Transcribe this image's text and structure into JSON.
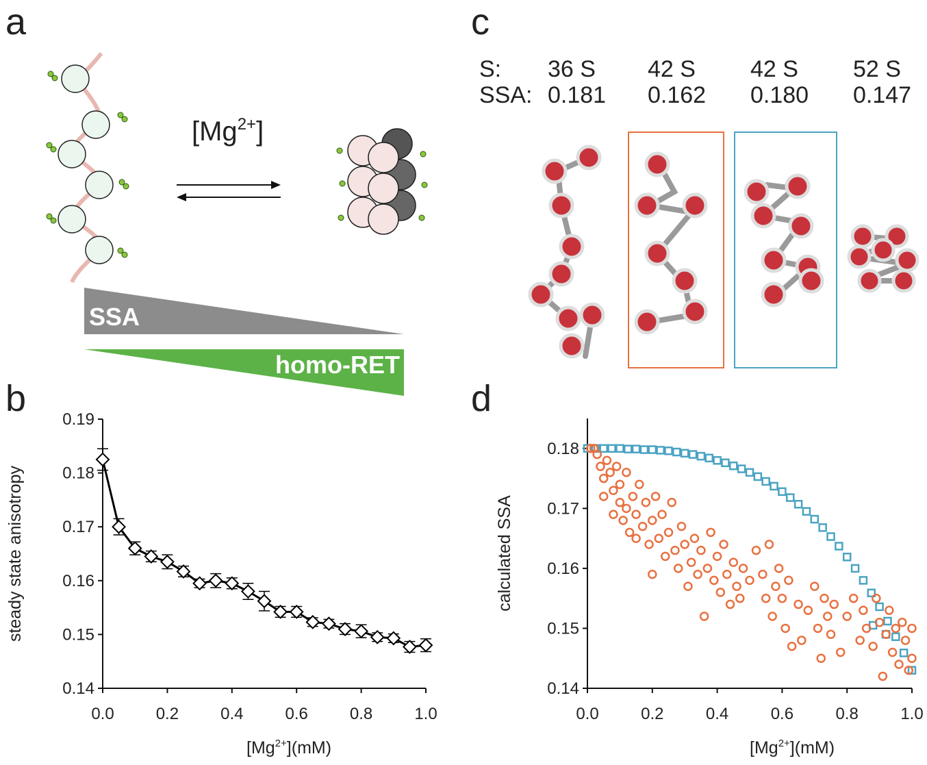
{
  "panel_labels": [
    "a",
    "b",
    "c",
    "d"
  ],
  "panel_a": {
    "reagent": [
      "[Mg",
      "2+",
      "]"
    ],
    "bar_top": "SSA",
    "bar_bottom": "homo-RET"
  },
  "panel_c": {
    "row_labels": [
      "S:",
      "SSA:"
    ],
    "columns": [
      {
        "s": "36 S",
        "ssa": "0.181"
      },
      {
        "s": "42 S",
        "ssa": "0.162"
      },
      {
        "s": "42 S",
        "ssa": "0.180"
      },
      {
        "s": "52 S",
        "ssa": "0.147"
      }
    ]
  },
  "chart_data": [
    {
      "type": "line",
      "ylabel": "steady state anisotropy",
      "xlabel": [
        "[Mg",
        "2+",
        "](mM)"
      ],
      "x": [
        0,
        0.05,
        0.1,
        0.15,
        0.2,
        0.25,
        0.3,
        0.35,
        0.4,
        0.45,
        0.5,
        0.55,
        0.6,
        0.65,
        0.7,
        0.75,
        0.8,
        0.85,
        0.9,
        0.95,
        1.0
      ],
      "series": [
        {
          "color": "#000000",
          "marker": "diamond",
          "values": [
            0.1825,
            0.17,
            0.166,
            0.1645,
            0.1635,
            0.1617,
            0.1595,
            0.16,
            0.1595,
            0.158,
            0.1562,
            0.1542,
            0.1542,
            0.1523,
            0.152,
            0.151,
            0.1506,
            0.1495,
            0.1493,
            0.1477,
            0.148
          ],
          "errors": [
            0.002,
            0.0015,
            0.0012,
            0.001,
            0.0013,
            0.001,
            0.0008,
            0.0013,
            0.001,
            0.0015,
            0.0018,
            0.001,
            0.001,
            0.0008,
            0.0008,
            0.001,
            0.0012,
            0.0008,
            0.0008,
            0.001,
            0.0012
          ]
        }
      ],
      "xlim": [
        0,
        1.0
      ],
      "ylim": [
        0.14,
        0.19
      ],
      "xticks": [
        {
          "value": 0,
          "label": "0.0"
        },
        0.2,
        0.4,
        0.6,
        0.8,
        {
          "value": 1,
          "label": "1.0"
        }
      ],
      "yticks": [
        0.14,
        0.15,
        0.16,
        0.17,
        0.18,
        0.19
      ]
    },
    {
      "type": "scatter",
      "ylabel": "calculated SSA",
      "xlabel": [
        "[Mg",
        "2+",
        "](mM)"
      ],
      "series": [
        {
          "color": "#4aa3c2",
          "marker": "square",
          "x": [
            0,
            0.025,
            0.05,
            0.075,
            0.1,
            0.125,
            0.15,
            0.175,
            0.2,
            0.225,
            0.25,
            0.275,
            0.3,
            0.325,
            0.35,
            0.375,
            0.4,
            0.425,
            0.45,
            0.475,
            0.5,
            0.525,
            0.55,
            0.575,
            0.6,
            0.625,
            0.65,
            0.675,
            0.7,
            0.725,
            0.75,
            0.775,
            0.8,
            0.825,
            0.85,
            0.875,
            0.9,
            0.925,
            0.95,
            0.975,
            1.0,
            0.88,
            0.92
          ],
          "values": [
            0.18,
            0.18,
            0.18,
            0.18,
            0.18,
            0.1799,
            0.1799,
            0.1798,
            0.1798,
            0.1797,
            0.1796,
            0.1794,
            0.1792,
            0.179,
            0.1787,
            0.1784,
            0.178,
            0.1776,
            0.1771,
            0.1766,
            0.176,
            0.1753,
            0.1745,
            0.1737,
            0.1728,
            0.1718,
            0.1707,
            0.1695,
            0.1682,
            0.1668,
            0.1653,
            0.1637,
            0.1619,
            0.16,
            0.158,
            0.1559,
            0.1536,
            0.1512,
            0.1486,
            0.1459,
            0.143,
            0.1505,
            0.149
          ]
        },
        {
          "color": "#e8703f",
          "marker": "circle",
          "x": [
            0.01,
            0.02,
            0.03,
            0.04,
            0.05,
            0.05,
            0.06,
            0.07,
            0.08,
            0.08,
            0.09,
            0.1,
            0.1,
            0.11,
            0.12,
            0.12,
            0.13,
            0.14,
            0.15,
            0.15,
            0.16,
            0.17,
            0.18,
            0.19,
            0.2,
            0.2,
            0.21,
            0.22,
            0.23,
            0.24,
            0.25,
            0.26,
            0.27,
            0.28,
            0.29,
            0.3,
            0.31,
            0.32,
            0.33,
            0.34,
            0.35,
            0.36,
            0.37,
            0.38,
            0.39,
            0.4,
            0.41,
            0.42,
            0.43,
            0.44,
            0.45,
            0.46,
            0.47,
            0.48,
            0.5,
            0.52,
            0.54,
            0.55,
            0.56,
            0.57,
            0.58,
            0.59,
            0.6,
            0.61,
            0.62,
            0.63,
            0.65,
            0.66,
            0.68,
            0.7,
            0.71,
            0.72,
            0.73,
            0.74,
            0.75,
            0.76,
            0.78,
            0.8,
            0.82,
            0.84,
            0.85,
            0.86,
            0.88,
            0.89,
            0.9,
            0.91,
            0.92,
            0.93,
            0.94,
            0.95,
            0.96,
            0.97,
            0.98,
            0.99,
            1.0,
            1.0
          ],
          "values": [
            0.18,
            0.18,
            0.179,
            0.177,
            0.175,
            0.172,
            0.178,
            0.176,
            0.173,
            0.169,
            0.177,
            0.171,
            0.174,
            0.168,
            0.176,
            0.17,
            0.166,
            0.172,
            0.169,
            0.165,
            0.174,
            0.167,
            0.171,
            0.164,
            0.168,
            0.159,
            0.172,
            0.165,
            0.169,
            0.162,
            0.166,
            0.171,
            0.163,
            0.16,
            0.167,
            0.164,
            0.157,
            0.161,
            0.165,
            0.159,
            0.163,
            0.152,
            0.16,
            0.166,
            0.158,
            0.162,
            0.156,
            0.164,
            0.159,
            0.154,
            0.161,
            0.157,
            0.155,
            0.16,
            0.158,
            0.163,
            0.159,
            0.155,
            0.164,
            0.152,
            0.157,
            0.16,
            0.155,
            0.15,
            0.158,
            0.147,
            0.154,
            0.148,
            0.153,
            0.157,
            0.15,
            0.145,
            0.155,
            0.152,
            0.149,
            0.154,
            0.146,
            0.152,
            0.155,
            0.148,
            0.153,
            0.15,
            0.147,
            0.155,
            0.151,
            0.142,
            0.149,
            0.153,
            0.146,
            0.15,
            0.144,
            0.151,
            0.148,
            0.143,
            0.15,
            0.145
          ]
        }
      ],
      "xlim": [
        0,
        1.0
      ],
      "ylim": [
        0.14,
        0.185
      ],
      "xticks": [
        {
          "value": 0,
          "label": "0.0"
        },
        0.2,
        0.4,
        0.6,
        0.8,
        {
          "value": 1,
          "label": "1.0"
        }
      ],
      "yticks": [
        0.14,
        0.15,
        0.16,
        0.17,
        0.18
      ]
    }
  ]
}
